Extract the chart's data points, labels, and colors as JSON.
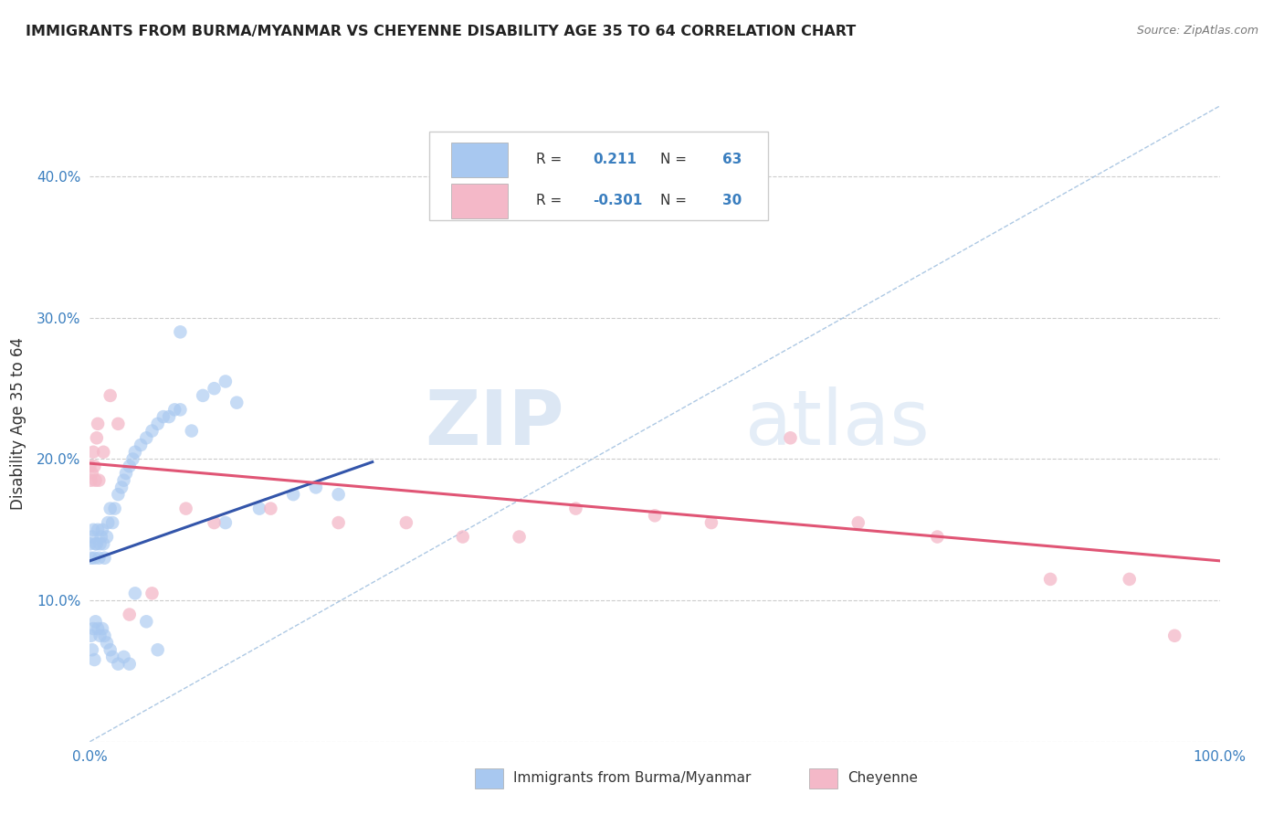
{
  "title": "IMMIGRANTS FROM BURMA/MYANMAR VS CHEYENNE DISABILITY AGE 35 TO 64 CORRELATION CHART",
  "source": "Source: ZipAtlas.com",
  "ylabel": "Disability Age 35 to 64",
  "xlim": [
    0.0,
    1.0
  ],
  "ylim": [
    0.0,
    0.45
  ],
  "xticks": [
    0.0,
    0.2,
    0.4,
    0.6,
    0.8,
    1.0
  ],
  "xticklabels": [
    "0.0%",
    "",
    "",
    "",
    "",
    "100.0%"
  ],
  "yticks": [
    0.0,
    0.1,
    0.2,
    0.3,
    0.4
  ],
  "yticklabels": [
    "",
    "10.0%",
    "20.0%",
    "30.0%",
    "40.0%"
  ],
  "grid_color": "#cccccc",
  "background_color": "#ffffff",
  "watermark_zip": "ZIP",
  "watermark_atlas": "atlas",
  "series1_color": "#a8c8f0",
  "series2_color": "#f4b8c8",
  "series1_label": "Immigrants from Burma/Myanmar",
  "series2_label": "Cheyenne",
  "series1_R": "0.211",
  "series1_N": "63",
  "series2_R": "-0.301",
  "series2_N": "30",
  "series1_line_color": "#3355aa",
  "series2_line_color": "#e05575",
  "diag_line_color": "#99bbdd",
  "series1_x": [
    0.0,
    0.001,
    0.002,
    0.003,
    0.004,
    0.005,
    0.006,
    0.007,
    0.008,
    0.009,
    0.01,
    0.011,
    0.012,
    0.013,
    0.015,
    0.016,
    0.018,
    0.02,
    0.022,
    0.025,
    0.028,
    0.03,
    0.032,
    0.035,
    0.038,
    0.04,
    0.045,
    0.05,
    0.055,
    0.06,
    0.065,
    0.07,
    0.075,
    0.08,
    0.09,
    0.1,
    0.11,
    0.12,
    0.13,
    0.15,
    0.18,
    0.2,
    0.22,
    0.003,
    0.005,
    0.007,
    0.009,
    0.011,
    0.013,
    0.015,
    0.018,
    0.02,
    0.025,
    0.03,
    0.035,
    0.04,
    0.05,
    0.06,
    0.08,
    0.12,
    0.001,
    0.002,
    0.004
  ],
  "series1_y": [
    0.14,
    0.13,
    0.145,
    0.15,
    0.13,
    0.14,
    0.14,
    0.15,
    0.13,
    0.14,
    0.145,
    0.15,
    0.14,
    0.13,
    0.145,
    0.155,
    0.165,
    0.155,
    0.165,
    0.175,
    0.18,
    0.185,
    0.19,
    0.195,
    0.2,
    0.205,
    0.21,
    0.215,
    0.22,
    0.225,
    0.23,
    0.23,
    0.235,
    0.235,
    0.22,
    0.245,
    0.25,
    0.255,
    0.24,
    0.165,
    0.175,
    0.18,
    0.175,
    0.08,
    0.085,
    0.08,
    0.075,
    0.08,
    0.075,
    0.07,
    0.065,
    0.06,
    0.055,
    0.06,
    0.055,
    0.105,
    0.085,
    0.065,
    0.29,
    0.155,
    0.075,
    0.065,
    0.058
  ],
  "series2_x": [
    0.0,
    0.001,
    0.002,
    0.003,
    0.004,
    0.005,
    0.006,
    0.007,
    0.008,
    0.012,
    0.018,
    0.025,
    0.035,
    0.055,
    0.085,
    0.11,
    0.16,
    0.22,
    0.28,
    0.33,
    0.38,
    0.43,
    0.5,
    0.55,
    0.62,
    0.68,
    0.75,
    0.85,
    0.92,
    0.96
  ],
  "series2_y": [
    0.195,
    0.185,
    0.19,
    0.205,
    0.195,
    0.185,
    0.215,
    0.225,
    0.185,
    0.205,
    0.245,
    0.225,
    0.09,
    0.105,
    0.165,
    0.155,
    0.165,
    0.155,
    0.155,
    0.145,
    0.145,
    0.165,
    0.16,
    0.155,
    0.215,
    0.155,
    0.145,
    0.115,
    0.115,
    0.075
  ],
  "series1_line_x": [
    0.0,
    0.25
  ],
  "series1_line_y": [
    0.128,
    0.198
  ],
  "series2_line_x": [
    0.0,
    1.0
  ],
  "series2_line_y": [
    0.197,
    0.128
  ],
  "diag_line_x": [
    0.0,
    1.0
  ],
  "diag_line_y": [
    0.0,
    0.45
  ]
}
